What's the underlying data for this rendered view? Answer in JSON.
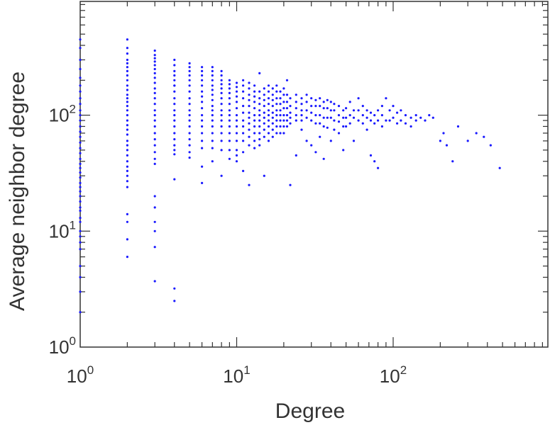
{
  "chart_data": {
    "type": "scatter",
    "title": "",
    "xlabel": "Degree",
    "ylabel": "Average neighbor degree",
    "x_scale": "log",
    "y_scale": "log",
    "xlim": [
      1,
      1000
    ],
    "ylim": [
      1,
      1000
    ],
    "x_ticks": [
      {
        "value": 1,
        "base": "10",
        "exp": "0"
      },
      {
        "value": 10,
        "base": "10",
        "exp": "1"
      },
      {
        "value": 100,
        "base": "10",
        "exp": "2"
      }
    ],
    "y_ticks": [
      {
        "value": 1,
        "base": "10",
        "exp": "0"
      },
      {
        "value": 10,
        "base": "10",
        "exp": "1"
      },
      {
        "value": 100,
        "base": "10",
        "exp": "2"
      }
    ],
    "grid": false,
    "marker_color": "#1a1aff",
    "series": [
      {
        "x": [
          1,
          1,
          1,
          1,
          1,
          1,
          1,
          1,
          1,
          1,
          1,
          1,
          1,
          1,
          1,
          1,
          1,
          1,
          1,
          1,
          1,
          1,
          1,
          1,
          1,
          1,
          1,
          1,
          1,
          1,
          1,
          1,
          1,
          1,
          1,
          1,
          1,
          1,
          1,
          1,
          2,
          2,
          2,
          2,
          2,
          2,
          2,
          2,
          2,
          2,
          2,
          2,
          2,
          2,
          2,
          2,
          2,
          2,
          2,
          2,
          2,
          2,
          2,
          2,
          2,
          2,
          2,
          2,
          2,
          2,
          2,
          2,
          2,
          2,
          2,
          3,
          3,
          3,
          3,
          3,
          3,
          3,
          3,
          3,
          3,
          3,
          3,
          3,
          3,
          3,
          3,
          3,
          3,
          3,
          3,
          3,
          3,
          3,
          3,
          3,
          3,
          3,
          3,
          3,
          4,
          4,
          4,
          4,
          4,
          4,
          4,
          4,
          4,
          4,
          4,
          4,
          4,
          4,
          4,
          4,
          4,
          4,
          4,
          4,
          4,
          4,
          5,
          5,
          5,
          5,
          5,
          5,
          5,
          5,
          5,
          5,
          5,
          5,
          5,
          5,
          5,
          5,
          5,
          5,
          6,
          6,
          6,
          6,
          6,
          6,
          6,
          6,
          6,
          6,
          6,
          6,
          6,
          6,
          6,
          6,
          6,
          7,
          7,
          7,
          7,
          7,
          7,
          7,
          7,
          7,
          7,
          7,
          7,
          7,
          7,
          7,
          7,
          7,
          8,
          8,
          8,
          8,
          8,
          8,
          8,
          8,
          8,
          8,
          8,
          8,
          8,
          8,
          8,
          8,
          9,
          9,
          9,
          9,
          9,
          9,
          9,
          9,
          9,
          9,
          9,
          9,
          9,
          9,
          10,
          10,
          10,
          10,
          10,
          10,
          10,
          10,
          10,
          10,
          10,
          10,
          10,
          10,
          11,
          11,
          11,
          11,
          11,
          11,
          11,
          11,
          11,
          11,
          11,
          11,
          12,
          12,
          12,
          12,
          12,
          12,
          12,
          12,
          12,
          12,
          12,
          12,
          13,
          13,
          13,
          13,
          13,
          13,
          13,
          13,
          13,
          13,
          13,
          14,
          14,
          14,
          14,
          14,
          14,
          14,
          14,
          14,
          14,
          14,
          15,
          15,
          15,
          15,
          15,
          15,
          15,
          15,
          15,
          15,
          16,
          16,
          16,
          16,
          16,
          16,
          16,
          16,
          16,
          16,
          17,
          17,
          17,
          17,
          17,
          17,
          17,
          17,
          17,
          18,
          18,
          18,
          18,
          18,
          18,
          18,
          18,
          18,
          19,
          19,
          19,
          19,
          19,
          19,
          19,
          19,
          20,
          20,
          20,
          20,
          20,
          20,
          20,
          20,
          21,
          21,
          21,
          21,
          21,
          21,
          21,
          22,
          22,
          22,
          22,
          22,
          22,
          24,
          24,
          24,
          24,
          24,
          24,
          26,
          26,
          26,
          26,
          26,
          26,
          28,
          28,
          28,
          28,
          28,
          30,
          30,
          30,
          30,
          30,
          32,
          32,
          32,
          32,
          32,
          34,
          34,
          34,
          34,
          34,
          36,
          36,
          36,
          36,
          36,
          38,
          38,
          38,
          38,
          40,
          40,
          40,
          40,
          42,
          42,
          42,
          42,
          45,
          45,
          45,
          45,
          48,
          48,
          48,
          48,
          50,
          50,
          50,
          53,
          53,
          53,
          56,
          56,
          56,
          60,
          60,
          60,
          64,
          64,
          64,
          68,
          68,
          68,
          72,
          72,
          72,
          76,
          76,
          76,
          80,
          80,
          80,
          85,
          85,
          85,
          90,
          90,
          95,
          95,
          100,
          100,
          106,
          106,
          112,
          112,
          120,
          120,
          130,
          130,
          140,
          140,
          150,
          160,
          170,
          180,
          200,
          210,
          220,
          240,
          260,
          300,
          340,
          380,
          420,
          480
        ],
        "y": [
          450,
          380,
          300,
          250,
          210,
          180,
          160,
          140,
          125,
          110,
          100,
          90,
          80,
          72,
          65,
          58,
          52,
          47,
          42,
          38,
          35,
          32,
          29,
          26,
          24,
          22,
          20,
          18,
          16,
          15,
          13,
          12,
          10,
          9,
          8,
          7,
          5,
          4,
          3,
          2,
          450,
          380,
          340,
          300,
          280,
          260,
          240,
          220,
          200,
          180,
          165,
          150,
          140,
          130,
          120,
          110,
          100,
          90,
          82,
          75,
          68,
          60,
          55,
          50,
          45,
          40,
          36,
          33,
          30,
          27,
          24,
          14,
          12,
          8.5,
          6,
          360,
          330,
          310,
          290,
          270,
          250,
          230,
          210,
          190,
          170,
          155,
          140,
          125,
          110,
          100,
          90,
          80,
          70,
          62,
          55,
          48,
          42,
          38,
          20,
          16,
          12,
          10,
          7.3,
          3.7,
          300,
          270,
          240,
          220,
          200,
          180,
          160,
          140,
          125,
          110,
          100,
          90,
          80,
          70,
          62,
          55,
          50,
          46,
          28,
          3.2,
          2.5,
          180,
          280,
          260,
          240,
          220,
          200,
          180,
          160,
          140,
          125,
          110,
          100,
          90,
          80,
          70,
          62,
          55,
          48,
          43,
          260,
          240,
          220,
          200,
          180,
          160,
          145,
          130,
          115,
          100,
          90,
          80,
          70,
          60,
          52,
          36,
          26,
          260,
          240,
          220,
          200,
          180,
          165,
          150,
          135,
          120,
          110,
          100,
          90,
          80,
          70,
          60,
          52,
          40,
          240,
          220,
          200,
          185,
          170,
          155,
          140,
          125,
          110,
          100,
          90,
          80,
          70,
          60,
          50,
          30,
          200,
          185,
          170,
          155,
          140,
          125,
          110,
          100,
          90,
          80,
          70,
          60,
          50,
          42,
          190,
          175,
          160,
          145,
          130,
          115,
          100,
          90,
          80,
          70,
          60,
          50,
          45,
          40,
          200,
          180,
          160,
          140,
          120,
          105,
          90,
          80,
          70,
          60,
          48,
          33,
          190,
          170,
          150,
          135,
          120,
          105,
          95,
          85,
          75,
          65,
          55,
          25,
          180,
          160,
          145,
          130,
          115,
          100,
          90,
          80,
          70,
          60,
          52,
          230,
          160,
          140,
          125,
          110,
          100,
          90,
          80,
          70,
          62,
          55,
          170,
          150,
          135,
          120,
          105,
          95,
          85,
          75,
          65,
          30,
          180,
          160,
          140,
          125,
          110,
          100,
          90,
          80,
          70,
          60,
          170,
          150,
          135,
          120,
          105,
          95,
          85,
          75,
          65,
          180,
          160,
          140,
          125,
          110,
          100,
          90,
          80,
          70,
          160,
          140,
          125,
          110,
          100,
          90,
          80,
          70,
          170,
          150,
          130,
          115,
          100,
          90,
          80,
          70,
          200,
          150,
          130,
          115,
          100,
          90,
          80,
          140,
          120,
          105,
          95,
          85,
          25,
          150,
          130,
          115,
          100,
          90,
          45,
          140,
          125,
          110,
          100,
          90,
          75,
          150,
          130,
          110,
          95,
          60,
          140,
          120,
          105,
          90,
          55,
          135,
          120,
          100,
          85,
          48,
          140,
          120,
          100,
          85,
          65,
          130,
          115,
          95,
          80,
          42,
          135,
          115,
          95,
          78,
          130,
          110,
          95,
          60,
          125,
          110,
          90,
          75,
          120,
          100,
          88,
          70,
          110,
          95,
          80,
          50,
          115,
          95,
          80,
          130,
          100,
          85,
          110,
          95,
          60,
          140,
          110,
          90,
          120,
          100,
          85,
          110,
          95,
          75,
          105,
          90,
          45,
          100,
          85,
          40,
          110,
          90,
          35,
          120,
          100,
          80,
          140,
          90,
          110,
          90,
          120,
          95,
          105,
          85,
          110,
          90,
          100,
          85,
          95,
          80,
          100,
          90,
          95,
          90,
          100,
          95,
          60,
          70,
          55,
          40,
          80,
          60,
          70,
          65,
          55,
          35
        ]
      }
    ]
  }
}
